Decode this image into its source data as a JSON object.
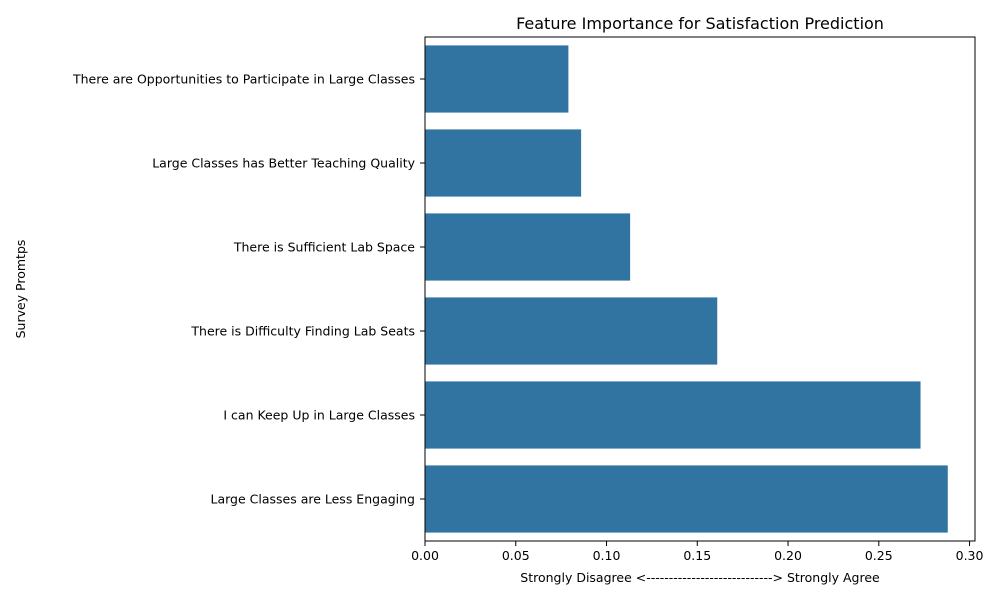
{
  "colors": {
    "bar": "#3274a1",
    "axis": "#000000"
  },
  "chart_data": {
    "type": "bar",
    "orientation": "horizontal",
    "title": "Feature Importance for Satisfaction Prediction",
    "xlabel": "Strongly Disagree <----------------------------> Strongly Agree",
    "ylabel": "Survey Promtps",
    "categories": [
      "There are Opportunities to Participate in Large Classes",
      "Large Classes has Better Teaching Quality",
      "There is Sufficient Lab Space",
      "There is Difficulty Finding Lab Seats",
      "I can Keep Up in Large Classes",
      "Large Classes are Less Engaging"
    ],
    "values": [
      0.079,
      0.086,
      0.113,
      0.161,
      0.273,
      0.288
    ],
    "xlim": [
      0,
      0.303
    ],
    "xticks": [
      0.0,
      0.05,
      0.1,
      0.15,
      0.2,
      0.25,
      0.3
    ],
    "xtick_labels": [
      "0.00",
      "0.05",
      "0.10",
      "0.15",
      "0.20",
      "0.25",
      "0.30"
    ],
    "grid": false,
    "legend": "none"
  }
}
